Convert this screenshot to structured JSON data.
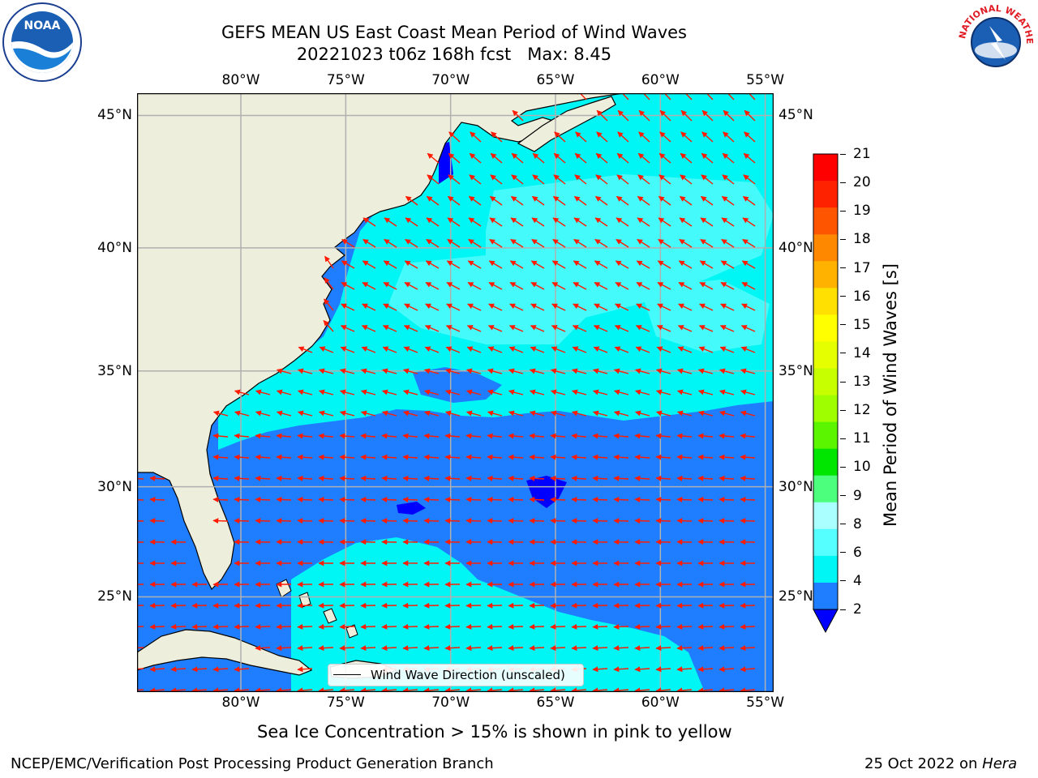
{
  "header": {
    "title_line1": "GEFS MEAN US East Coast Mean Period of Wind Waves",
    "title_line2": "20221023 t06z 168h fcst   Max: 8.45"
  },
  "logos": {
    "left": "NOAA",
    "right": "NATIONAL WEATHER SERVICE"
  },
  "map": {
    "lon_ticks": [
      "80°W",
      "75°W",
      "70°W",
      "65°W",
      "60°W",
      "55°W"
    ],
    "lat_ticks": [
      "45°N",
      "40°N",
      "35°N",
      "30°N",
      "25°N"
    ],
    "lon_values": [
      -80,
      -75,
      -70,
      -65,
      -60,
      -55
    ],
    "lat_values": [
      45,
      40,
      35,
      30,
      25
    ],
    "legend_label": "Wind Wave Direction (unscaled)",
    "colors": {
      "land": "#eeeedd",
      "period_2_4": "#1f7eff",
      "period_4_6": "#00f5f5",
      "period_6_8": "#45fafa",
      "arrow": "#ff1a00",
      "grid": "#b0b0b0"
    }
  },
  "colorbar": {
    "label": "Mean Period of Wind Waves [s]",
    "ticks": [
      "21",
      "20",
      "19",
      "18",
      "17",
      "16",
      "15",
      "14",
      "13",
      "12",
      "11",
      "10",
      "9",
      "8",
      "6",
      "4",
      "2"
    ],
    "colors": [
      "#fe0000",
      "#fe2200",
      "#fe5500",
      "#fe8800",
      "#ffb300",
      "#ffe000",
      "#ffff00",
      "#e6ff00",
      "#c8ff00",
      "#9fff00",
      "#5cf500",
      "#00e600",
      "#4cff7c",
      "#aaffff",
      "#55ffff",
      "#00f5f5",
      "#1f7eff"
    ],
    "extend_color": "#0000ff"
  },
  "footer": {
    "note": "Sea Ice Concentration > 15% is shown in pink to yellow",
    "left": "NCEP/EMC/Verification Post Processing Product Generation Branch",
    "right_prefix": "25 Oct 2022 on",
    "right_host": "Hera"
  }
}
